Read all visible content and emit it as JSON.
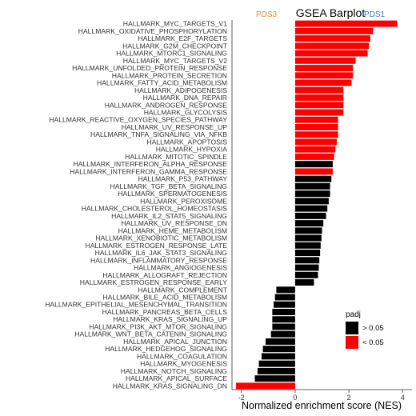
{
  "chart_data": {
    "type": "bar",
    "orientation": "horizontal",
    "title": "GSEA Barplot",
    "group_labels": {
      "left": "PDS3",
      "right": "PDS1",
      "left_color": "#e08a2c",
      "right_color": "#3a78b5"
    },
    "xlabel": "Normalized enrichment score (NES)",
    "xlim": [
      -2.35,
      4.35
    ],
    "xticks": [
      -2,
      0,
      2,
      4
    ],
    "grid": false,
    "legend": {
      "title": "padj",
      "position": "right",
      "entries": [
        {
          "label": "> 0.05",
          "color": "#000000"
        },
        {
          "label": "< 0.05",
          "color": "#ff0000"
        }
      ]
    },
    "categories": [
      "HALLMARK_MYC_TARGETS_V1",
      "HALLMARK_OXIDATIVE_PHOSPHORYLATION",
      "HALLMARK_E2F_TARGETS",
      "HALLMARK_G2M_CHECKPOINT",
      "HALLMARK_MTORC1_SIGNALING",
      "HALLMARK_MYC_TARGETS_V2",
      "HALLMARK_UNFOLDED_PROTEIN_RESPONSE",
      "HALLMARK_PROTEIN_SECRETION",
      "HALLMARK_FATTY_ACID_METABOLISM",
      "HALLMARK_ADIPOGENESIS",
      "HALLMARK_DNA_REPAIR",
      "HALLMARK_ANDROGEN_RESPONSE",
      "HALLMARK_GLYCOLYSIS",
      "HALLMARK_REACTIVE_OXYGEN_SPECIES_PATHWAY",
      "HALLMARK_UV_RESPONSE_UP",
      "HALLMARK_TNFA_SIGNALING_VIA_NFKB",
      "HALLMARK_APOPTOSIS",
      "HALLMARK_HYPOXIA",
      "HALLMARK_MITOTIC_SPINDLE",
      "HALLMARK_INTERFERON_ALPHA_RESPONSE",
      "HALLMARK_INTERFERON_GAMMA_RESPONSE",
      "HALLMARK_P53_PATHWAY",
      "HALLMARK_TGF_BETA_SIGNALING",
      "HALLMARK_SPERMATOGENESIS",
      "HALLMARK_PEROXISOME",
      "HALLMARK_CHOLESTEROL_HOMEOSTASIS",
      "HALLMARK_IL2_STAT5_SIGNALING",
      "HALLMARK_UV_RESPONSE_DN",
      "HALLMARK_HEME_METABOLISM",
      "HALLMARK_XENOBIOTIC_METABOLISM",
      "HALLMARK_ESTROGEN_RESPONSE_LATE",
      "HALLMARK_IL6_JAK_STAT3_SIGNALING",
      "HALLMARK_INFLAMMATORY_RESPONSE",
      "HALLMARK_ANGIOGENESIS",
      "HALLMARK_ALLOGRAFT_REJECTION",
      "HALLMARK_ESTROGEN_RESPONSE_EARLY",
      "HALLMARK_COMPLEMENT",
      "HALLMARK_BILE_ACID_METABOLISM",
      "HALLMARK_EPITHELIAL_MESENCHYMAL_TRANSITION",
      "HALLMARK_PANCREAS_BETA_CELLS",
      "HALLMARK_KRAS_SIGNALING_UP",
      "HALLMARK_PI3K_AKT_MTOR_SIGNALING",
      "HALLMARK_WNT_BETA_CATENIN_SIGNALING",
      "HALLMARK_APICAL_JUNCTION",
      "HALLMARK_HEDGEHOG_SIGNALING",
      "HALLMARK_COAGULATION",
      "HALLMARK_MYOGENESIS",
      "HALLMARK_NOTCH_SIGNALING",
      "HALLMARK_APICAL_SURFACE",
      "HALLMARK_KRAS_SIGNALING_DN"
    ],
    "values": [
      3.8,
      2.9,
      2.8,
      2.75,
      2.7,
      2.25,
      2.15,
      2.15,
      2.1,
      1.8,
      1.8,
      1.8,
      1.8,
      1.6,
      1.6,
      1.6,
      1.55,
      1.5,
      1.45,
      1.4,
      1.4,
      1.35,
      1.3,
      1.3,
      1.25,
      1.2,
      1.15,
      1.05,
      1.0,
      0.98,
      0.95,
      0.93,
      0.9,
      0.88,
      0.85,
      0.7,
      -0.7,
      -0.75,
      -0.8,
      -0.85,
      -0.85,
      -0.85,
      -0.9,
      -1.1,
      -1.2,
      -1.25,
      -1.35,
      -1.4,
      -1.5,
      -2.2
    ],
    "padj": [
      "< 0.05",
      "< 0.05",
      "< 0.05",
      "< 0.05",
      "< 0.05",
      "< 0.05",
      "< 0.05",
      "< 0.05",
      "< 0.05",
      "< 0.05",
      "< 0.05",
      "< 0.05",
      "< 0.05",
      "< 0.05",
      "< 0.05",
      "< 0.05",
      "< 0.05",
      "< 0.05",
      "< 0.05",
      "> 0.05",
      "< 0.05",
      "> 0.05",
      "> 0.05",
      "> 0.05",
      "> 0.05",
      "> 0.05",
      "> 0.05",
      "> 0.05",
      "> 0.05",
      "> 0.05",
      "> 0.05",
      "> 0.05",
      "> 0.05",
      "> 0.05",
      "> 0.05",
      "> 0.05",
      "> 0.05",
      "> 0.05",
      "> 0.05",
      "> 0.05",
      "> 0.05",
      "> 0.05",
      "> 0.05",
      "> 0.05",
      "> 0.05",
      "> 0.05",
      "> 0.05",
      "> 0.05",
      "> 0.05",
      "< 0.05"
    ]
  }
}
